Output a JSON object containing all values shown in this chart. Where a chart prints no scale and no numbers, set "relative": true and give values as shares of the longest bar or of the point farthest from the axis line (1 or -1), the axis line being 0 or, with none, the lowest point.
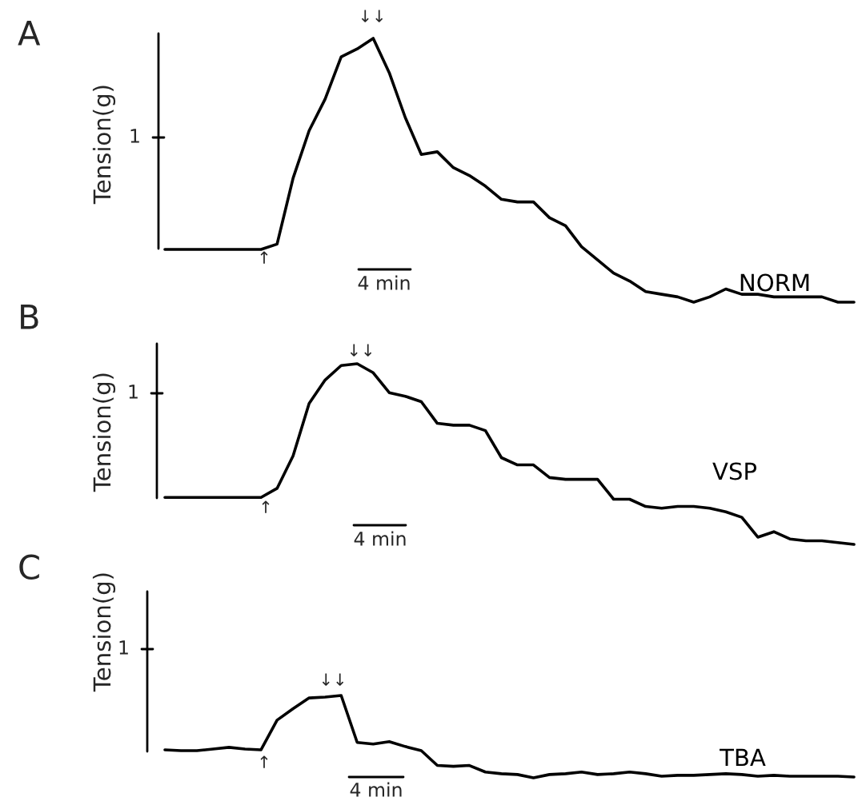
{
  "chart_data": [
    {
      "type": "line",
      "title": "A",
      "ylabel": "Tension(g)",
      "relative": true,
      "categories": [
        null,
        null,
        null,
        null,
        null,
        null,
        null,
        null,
        null,
        null,
        null,
        null,
        null,
        null,
        null,
        null,
        null,
        null,
        null,
        null,
        null,
        null,
        null,
        null,
        null,
        null,
        null,
        null,
        null,
        null,
        null,
        null,
        null,
        null,
        null,
        null,
        null,
        null,
        null,
        null,
        null,
        null,
        null,
        null
      ],
      "series": [
        {
          "name": "NORM",
          "color": "#000000",
          "values": [
            0.2,
            0.2,
            0.2,
            0.2,
            0.2,
            0.2,
            0.2,
            0.22,
            0.47,
            0.65,
            0.77,
            0.93,
            0.96,
            1,
            0.87,
            0.7,
            0.56,
            0.57,
            0.51,
            0.48,
            0.44,
            0.39,
            0.38,
            0.38,
            0.32,
            0.29,
            0.21,
            0.16,
            0.11,
            0.08,
            0.04,
            0.03,
            0.02,
            0.0,
            0.02,
            0.05,
            0.03,
            0.03,
            0.02,
            0.02,
            0.02,
            0.02,
            0.0,
            0
          ]
        }
      ],
      "annotations": [
        "1",
        "↑",
        "↓↓",
        "4 min"
      ]
    },
    {
      "type": "line",
      "title": "B",
      "ylabel": "Tension(g)",
      "relative": true,
      "categories": [
        null,
        null,
        null,
        null,
        null,
        null,
        null,
        null,
        null,
        null,
        null,
        null,
        null,
        null,
        null,
        null,
        null,
        null,
        null,
        null,
        null,
        null,
        null,
        null,
        null,
        null,
        null,
        null,
        null,
        null,
        null,
        null,
        null,
        null,
        null,
        null,
        null,
        null,
        null,
        null,
        null,
        null,
        null,
        null
      ],
      "series": [
        {
          "name": "VSP",
          "color": "#000000",
          "values": [
            0.26,
            0.26,
            0.26,
            0.26,
            0.26,
            0.26,
            0.26,
            0.31,
            0.49,
            0.78,
            0.91,
            0.99,
            1,
            0.95,
            0.84,
            0.82,
            0.79,
            0.67,
            0.66,
            0.66,
            0.63,
            0.48,
            0.44,
            0.44,
            0.37,
            0.36,
            0.36,
            0.36,
            0.25,
            0.25,
            0.21,
            0.2,
            0.21,
            0.21,
            0.2,
            0.18,
            0.15,
            0.04,
            0.07,
            0.03,
            0.02,
            0.02,
            0.01,
            0
          ]
        }
      ],
      "annotations": [
        "1",
        "↑",
        "↓↓",
        "4 min"
      ]
    },
    {
      "type": "line",
      "title": "C",
      "ylabel": "Tension(g)",
      "relative": true,
      "categories": [
        null,
        null,
        null,
        null,
        null,
        null,
        null,
        null,
        null,
        null,
        null,
        null,
        null,
        null,
        null,
        null,
        null,
        null,
        null,
        null,
        null,
        null,
        null,
        null,
        null,
        null,
        null,
        null,
        null,
        null,
        null,
        null,
        null,
        null,
        null,
        null,
        null,
        null,
        null,
        null,
        null,
        null,
        null,
        null
      ],
      "series": [
        {
          "name": "TBA",
          "color": "#000000",
          "values": [
            0.34,
            0.33,
            0.33,
            0.35,
            0.37,
            0.35,
            0.34,
            0.7,
            0.84,
            0.97,
            0.98,
            1,
            0.43,
            0.41,
            0.44,
            0.38,
            0.33,
            0.15,
            0.14,
            0.15,
            0.07,
            0.05,
            0.04,
            0,
            0.04,
            0.05,
            0.07,
            0.04,
            0.05,
            0.07,
            0.05,
            0.02,
            0.03,
            0.03,
            0.04,
            0.05,
            0.04,
            0.02,
            0.03,
            0.02,
            0.02,
            0.02,
            0.02,
            0.01
          ]
        }
      ],
      "annotations": [
        "1",
        "↑",
        "↓↓",
        "4 min"
      ]
    }
  ]
}
